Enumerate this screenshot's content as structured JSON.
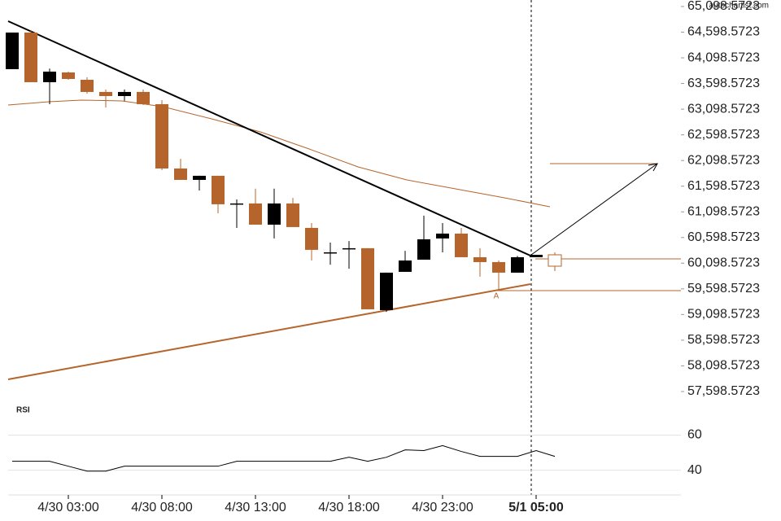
{
  "watermark": "autochartist.com",
  "pattern_label": "A",
  "chart_data": [
    {
      "type": "candlestick",
      "categories": [
        null,
        null,
        null,
        "4/30 03:00",
        null,
        null,
        null,
        null,
        "4/30 08:00",
        null,
        null,
        null,
        null,
        "4/30 13:00",
        null,
        null,
        null,
        null,
        "4/30 18:00",
        null,
        null,
        null,
        null,
        "4/30 23:00",
        null,
        null,
        null,
        null,
        "5/1 05:00",
        null
      ],
      "open": [
        63878,
        64591,
        63624,
        63814,
        63671,
        63434,
        63354,
        63434,
        63196,
        61943,
        61721,
        61801,
        61262,
        61262,
        60849,
        61262,
        60786,
        60310,
        60390,
        60390,
        59184,
        59930,
        60167,
        60580,
        60675,
        60215,
        60120,
        59914,
        60215,
        60262
      ],
      "high": [
        64591,
        64640,
        63890,
        63830,
        63720,
        63480,
        63480,
        63480,
        63275,
        62130,
        61801,
        61801,
        61340,
        61550,
        61550,
        61370,
        60880,
        60500,
        60530,
        60390,
        59914,
        60340,
        61025,
        60880,
        60786,
        60390,
        60150,
        60240,
        60262,
        60310
      ],
      "low": [
        63878,
        63624,
        63196,
        63671,
        63400,
        63130,
        63260,
        63180,
        61910,
        61721,
        61515,
        61070,
        60786,
        60849,
        60580,
        60802,
        60151,
        60070,
        59990,
        59200,
        59150,
        59930,
        60167,
        60310,
        60215,
        59835,
        59565,
        59914,
        60215,
        59945
      ],
      "close": [
        64591,
        63624,
        63830,
        63687,
        63434,
        63354,
        63434,
        63196,
        61943,
        61721,
        61801,
        61246,
        61262,
        60849,
        61262,
        60802,
        60358,
        60310,
        60390,
        59200,
        59914,
        60151,
        60564,
        60675,
        60215,
        60120,
        59914,
        60215,
        60262,
        60040
      ],
      "up_color": "#000000",
      "down_color": "#b5652b",
      "ylim": [
        57360,
        65225
      ],
      "yticks": [
        {
          "value": 57598.5723,
          "label": "57,598.5723"
        },
        {
          "value": 58098.5723,
          "label": "58,098.5723"
        },
        {
          "value": 58598.5723,
          "label": "58,598.5723"
        },
        {
          "value": 59098.5723,
          "label": "59,098.5723"
        },
        {
          "value": 59598.5723,
          "label": "59,598.5723"
        },
        {
          "value": 60098.5723,
          "label": "60,098.5723"
        },
        {
          "value": 60598.5723,
          "label": "60,598.5723"
        },
        {
          "value": 61098.5723,
          "label": "61,098.5723"
        },
        {
          "value": 61598.5723,
          "label": "61,598.5723"
        },
        {
          "value": 62098.5723,
          "label": "62,098.5723"
        },
        {
          "value": 62598.5723,
          "label": "62,598.5723"
        },
        {
          "value": 63098.5723,
          "label": "63,098.5723"
        },
        {
          "value": 63598.5723,
          "label": "63,598.5723"
        },
        {
          "value": 64098.5723,
          "label": "64,098.5723"
        },
        {
          "value": 64598.5723,
          "label": "64,598.5723"
        },
        {
          "value": 65098.5723,
          "label": "65,098.5723"
        }
      ],
      "grid": false
    },
    {
      "type": "line",
      "title": "RSI",
      "values": [
        45.1,
        45.1,
        45.1,
        42.3,
        39.5,
        39.5,
        42.3,
        42.3,
        42.3,
        42.3,
        42.3,
        42.3,
        45.1,
        45.1,
        45.1,
        45.1,
        45.1,
        45.1,
        47.4,
        45.1,
        47.4,
        51.6,
        51.2,
        54,
        50.7,
        47.9,
        47.9,
        47.9,
        51.2,
        47.9
      ],
      "color": "#000000",
      "ylim": [
        25,
        76
      ],
      "yticks": [
        40,
        60
      ],
      "grid": true
    }
  ]
}
